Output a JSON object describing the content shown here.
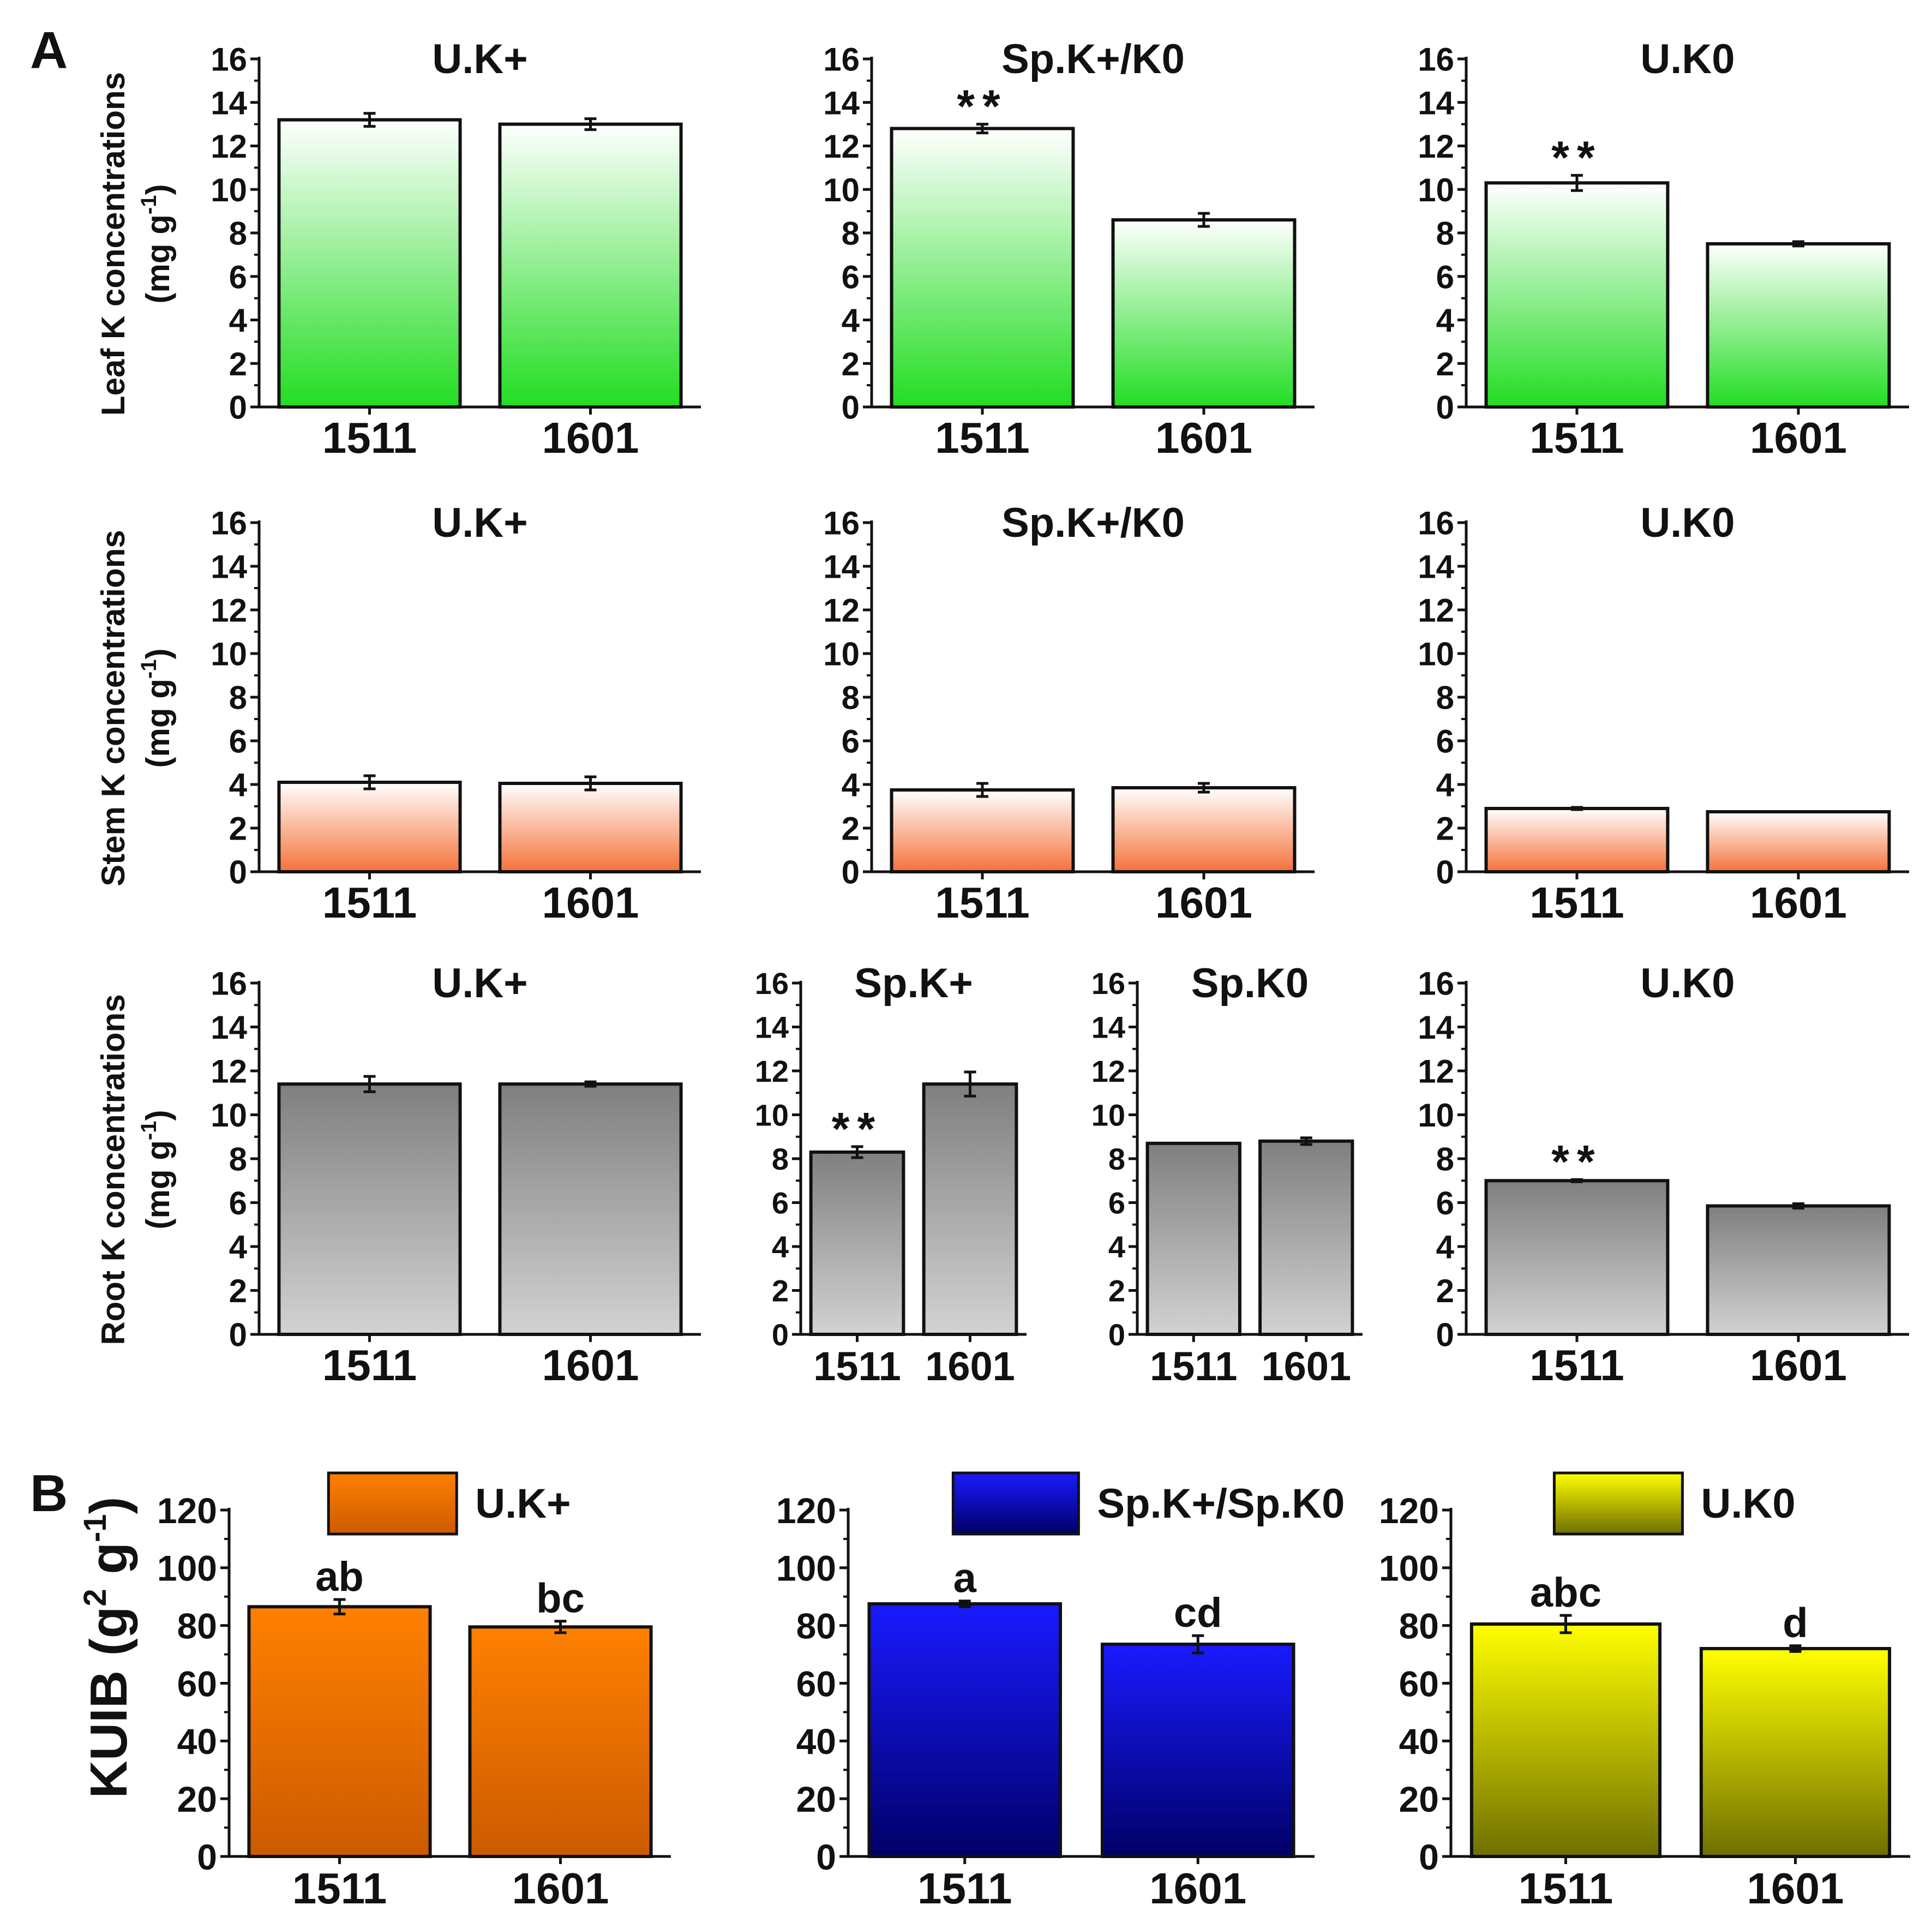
{
  "panel_labels": [
    "A",
    "B"
  ],
  "row_ylabels": [
    {
      "line1": "Leaf K concentrations",
      "unit": "(mg g",
      "sup": "-1",
      "close": ")"
    },
    {
      "line1": "Stem K concentrations",
      "unit": "(mg g",
      "sup": "-1",
      "close": ")"
    },
    {
      "line1": "Root K concentrations",
      "unit": "(mg g",
      "sup": "-1",
      "close": ")"
    }
  ],
  "b_ylabel": {
    "base": "KUIB (g",
    "sup1": "2",
    "mid": " g",
    "sup2": "-1",
    "close": ")"
  },
  "colors": {
    "leaf_top": "#ffffff",
    "leaf_bottom": "#22dd22",
    "stem_top": "#ffffff",
    "stem_bottom": "#f4733a",
    "root_top": "#7f7f7f",
    "root_bottom": "#d2d2d2",
    "b_orange_top": "#ff8000",
    "b_orange_bottom": "#cc5a00",
    "b_blue_top": "#1a1aff",
    "b_blue_bottom": "#000066",
    "b_yellow_top": "#ffff00",
    "b_yellow_bottom": "#6f6f00"
  },
  "chart_data": [
    {
      "type": "bar",
      "panel": "A",
      "row": "Leaf",
      "title": "U.K+",
      "categories": [
        "1511",
        "1601"
      ],
      "values": [
        13.2,
        13.0
      ],
      "errors": [
        0.3,
        0.25
      ],
      "annotations": [
        "",
        ""
      ],
      "ylim": [
        0,
        16
      ],
      "yticks": [
        0,
        2,
        4,
        6,
        8,
        10,
        12,
        14,
        16
      ],
      "fill": "leaf"
    },
    {
      "type": "bar",
      "panel": "A",
      "row": "Leaf",
      "title": "Sp.K+/K0",
      "categories": [
        "1511",
        "1601"
      ],
      "values": [
        12.8,
        8.6
      ],
      "errors": [
        0.2,
        0.3
      ],
      "annotations": [
        "**",
        ""
      ],
      "ylim": [
        0,
        16
      ],
      "yticks": [
        0,
        2,
        4,
        6,
        8,
        10,
        12,
        14,
        16
      ],
      "fill": "leaf"
    },
    {
      "type": "bar",
      "panel": "A",
      "row": "Leaf",
      "title": "U.K0",
      "categories": [
        "1511",
        "1601"
      ],
      "values": [
        10.3,
        7.5
      ],
      "errors": [
        0.35,
        0.1
      ],
      "annotations": [
        "**",
        ""
      ],
      "ylim": [
        0,
        16
      ],
      "yticks": [
        0,
        2,
        4,
        6,
        8,
        10,
        12,
        14,
        16
      ],
      "fill": "leaf"
    },
    {
      "type": "bar",
      "panel": "A",
      "row": "Stem",
      "title": "U.K+",
      "categories": [
        "1511",
        "1601"
      ],
      "values": [
        4.1,
        4.05
      ],
      "errors": [
        0.3,
        0.3
      ],
      "annotations": [
        "",
        ""
      ],
      "ylim": [
        0,
        16
      ],
      "yticks": [
        0,
        2,
        4,
        6,
        8,
        10,
        12,
        14,
        16
      ],
      "fill": "stem"
    },
    {
      "type": "bar",
      "panel": "A",
      "row": "Stem",
      "title": "Sp.K+/K0",
      "categories": [
        "1511",
        "1601"
      ],
      "values": [
        3.75,
        3.85
      ],
      "errors": [
        0.3,
        0.2
      ],
      "annotations": [
        "",
        ""
      ],
      "ylim": [
        0,
        16
      ],
      "yticks": [
        0,
        2,
        4,
        6,
        8,
        10,
        12,
        14,
        16
      ],
      "fill": "stem"
    },
    {
      "type": "bar",
      "panel": "A",
      "row": "Stem",
      "title": "U.K0",
      "categories": [
        "1511",
        "1601"
      ],
      "values": [
        2.9,
        2.75
      ],
      "errors": [
        0.05,
        0.0
      ],
      "annotations": [
        "",
        ""
      ],
      "ylim": [
        0,
        16
      ],
      "yticks": [
        0,
        2,
        4,
        6,
        8,
        10,
        12,
        14,
        16
      ],
      "fill": "stem"
    },
    {
      "type": "bar",
      "panel": "A",
      "row": "Root",
      "title": "U.K+",
      "categories": [
        "1511",
        "1601"
      ],
      "values": [
        11.4,
        11.4
      ],
      "errors": [
        0.35,
        0.1
      ],
      "annotations": [
        "",
        ""
      ],
      "ylim": [
        0,
        16
      ],
      "yticks": [
        0,
        2,
        4,
        6,
        8,
        10,
        12,
        14,
        16
      ],
      "fill": "root"
    },
    {
      "type": "bar",
      "panel": "A",
      "row": "Root",
      "title": "Sp.K+",
      "categories": [
        "1511",
        "1601"
      ],
      "values": [
        8.3,
        11.4
      ],
      "errors": [
        0.25,
        0.55
      ],
      "annotations": [
        "**",
        ""
      ],
      "ylim": [
        0,
        16
      ],
      "yticks": [
        0,
        2,
        4,
        6,
        8,
        10,
        12,
        14,
        16
      ],
      "fill": "root"
    },
    {
      "type": "bar",
      "panel": "A",
      "row": "Root",
      "title": "Sp.K0",
      "categories": [
        "1511",
        "1601"
      ],
      "values": [
        8.7,
        8.8
      ],
      "errors": [
        0.0,
        0.15
      ],
      "annotations": [
        "",
        ""
      ],
      "ylim": [
        0,
        16
      ],
      "yticks": [
        0,
        2,
        4,
        6,
        8,
        10,
        12,
        14,
        16
      ],
      "fill": "root"
    },
    {
      "type": "bar",
      "panel": "A",
      "row": "Root",
      "title": "U.K0",
      "categories": [
        "1511",
        "1601"
      ],
      "values": [
        7.0,
        5.85
      ],
      "errors": [
        0.05,
        0.1
      ],
      "annotations": [
        "**",
        ""
      ],
      "ylim": [
        0,
        16
      ],
      "yticks": [
        0,
        2,
        4,
        6,
        8,
        10,
        12,
        14,
        16
      ],
      "fill": "root"
    },
    {
      "type": "bar",
      "panel": "B",
      "legend": "U.K+",
      "categories": [
        "1511",
        "1601"
      ],
      "values": [
        86.5,
        79.5
      ],
      "errors": [
        2.5,
        2.0
      ],
      "annotations": [
        "ab",
        "bc"
      ],
      "ylim": [
        0,
        120
      ],
      "yticks": [
        0,
        20,
        40,
        60,
        80,
        100,
        120
      ],
      "fill": "b_orange"
    },
    {
      "type": "bar",
      "panel": "B",
      "legend": "Sp.K+/Sp.K0",
      "categories": [
        "1511",
        "1601"
      ],
      "values": [
        87.5,
        73.5
      ],
      "errors": [
        1.0,
        3.0
      ],
      "annotations": [
        "a",
        "cd"
      ],
      "ylim": [
        0,
        120
      ],
      "yticks": [
        0,
        20,
        40,
        60,
        80,
        100,
        120
      ],
      "fill": "b_blue"
    },
    {
      "type": "bar",
      "panel": "B",
      "legend": "U.K0",
      "categories": [
        "1511",
        "1601"
      ],
      "values": [
        80.5,
        72.0
      ],
      "errors": [
        3.0,
        1.0
      ],
      "annotations": [
        "abc",
        "d"
      ],
      "ylim": [
        0,
        120
      ],
      "yticks": [
        0,
        20,
        40,
        60,
        80,
        100,
        120
      ],
      "fill": "b_yellow"
    }
  ]
}
